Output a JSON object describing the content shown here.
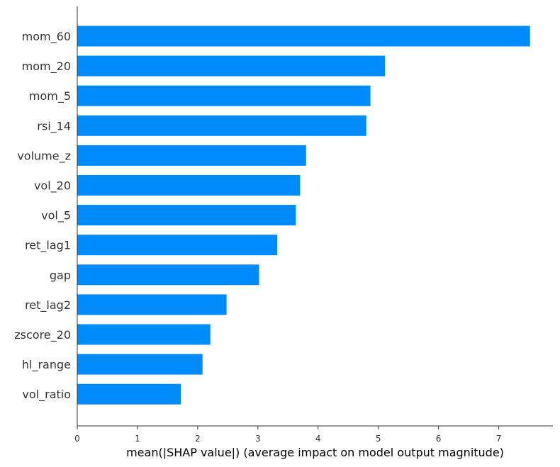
{
  "chart_data": {
    "type": "bar",
    "orientation": "horizontal",
    "categories": [
      "mom_60",
      "mom_20",
      "mom_5",
      "rsi_14",
      "volume_z",
      "vol_20",
      "vol_5",
      "ret_lag1",
      "gap",
      "ret_lag2",
      "zscore_20",
      "hl_range",
      "vol_ratio"
    ],
    "values": [
      7.52,
      5.11,
      4.87,
      4.8,
      3.8,
      3.7,
      3.63,
      3.32,
      3.02,
      2.48,
      2.21,
      2.08,
      1.72
    ],
    "title": "",
    "xlabel": "mean(|SHAP value|) (average impact on model output magnitude)",
    "ylabel": "",
    "xlim": [
      0,
      7.9
    ],
    "xticks": [
      0,
      1,
      2,
      3,
      4,
      5,
      6,
      7
    ],
    "grid": false,
    "legend": "none",
    "bar_color": "#008bfb",
    "axis_color": "#333333"
  }
}
